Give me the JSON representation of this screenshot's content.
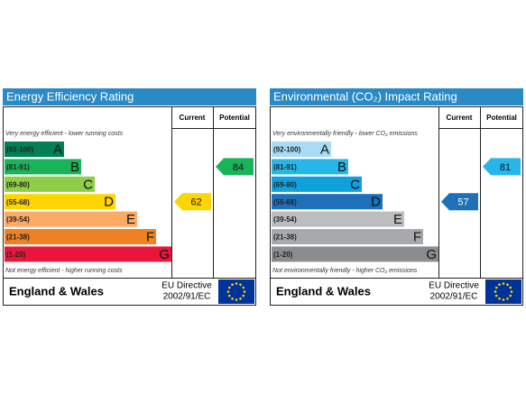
{
  "panels": [
    {
      "title": "Energy Efficiency Rating",
      "headers": [
        "Current",
        "Potential"
      ],
      "top_note": "Very energy efficient - lower running costs",
      "bottom_note": "Not energy efficient - higher running costs",
      "bands": [
        {
          "range": "(92-100)",
          "letter": "A",
          "color": "#008054"
        },
        {
          "range": "(81-91)",
          "letter": "B",
          "color": "#19b459"
        },
        {
          "range": "(69-80)",
          "letter": "C",
          "color": "#8dce46"
        },
        {
          "range": "(55-68)",
          "letter": "D",
          "color": "#ffd500"
        },
        {
          "range": "(39-54)",
          "letter": "E",
          "color": "#fcaa65"
        },
        {
          "range": "(21-38)",
          "letter": "F",
          "color": "#ef8023"
        },
        {
          "range": "(1-20)",
          "letter": "G",
          "color": "#e9153b"
        }
      ],
      "current": 62,
      "potential": 84,
      "region": "England & Wales",
      "directive": [
        "EU Directive",
        "2002/91/EC"
      ]
    },
    {
      "title": "Environmental (CO₂) Impact Rating",
      "headers": [
        "Current",
        "Potential"
      ],
      "top_note": "Very environmentally friendly - lower CO₂ emissions",
      "bottom_note": "Not environmentally friendly - higher CO₂ emissions",
      "bands": [
        {
          "range": "(92-100)",
          "letter": "A",
          "color": "#a7dcf4"
        },
        {
          "range": "(81-91)",
          "letter": "B",
          "color": "#27b6ea"
        },
        {
          "range": "(69-80)",
          "letter": "C",
          "color": "#10a0db"
        },
        {
          "range": "(55-68)",
          "letter": "D",
          "color": "#1e70b8"
        },
        {
          "range": "(39-54)",
          "letter": "E",
          "color": "#bbbdbf"
        },
        {
          "range": "(21-38)",
          "letter": "F",
          "color": "#a7a9ac"
        },
        {
          "range": "(1-20)",
          "letter": "G",
          "color": "#8a8c8e"
        }
      ],
      "current": 57,
      "potential": 81,
      "region": "England & Wales",
      "directive": [
        "EU Directive",
        "2002/91/EC"
      ]
    }
  ]
}
